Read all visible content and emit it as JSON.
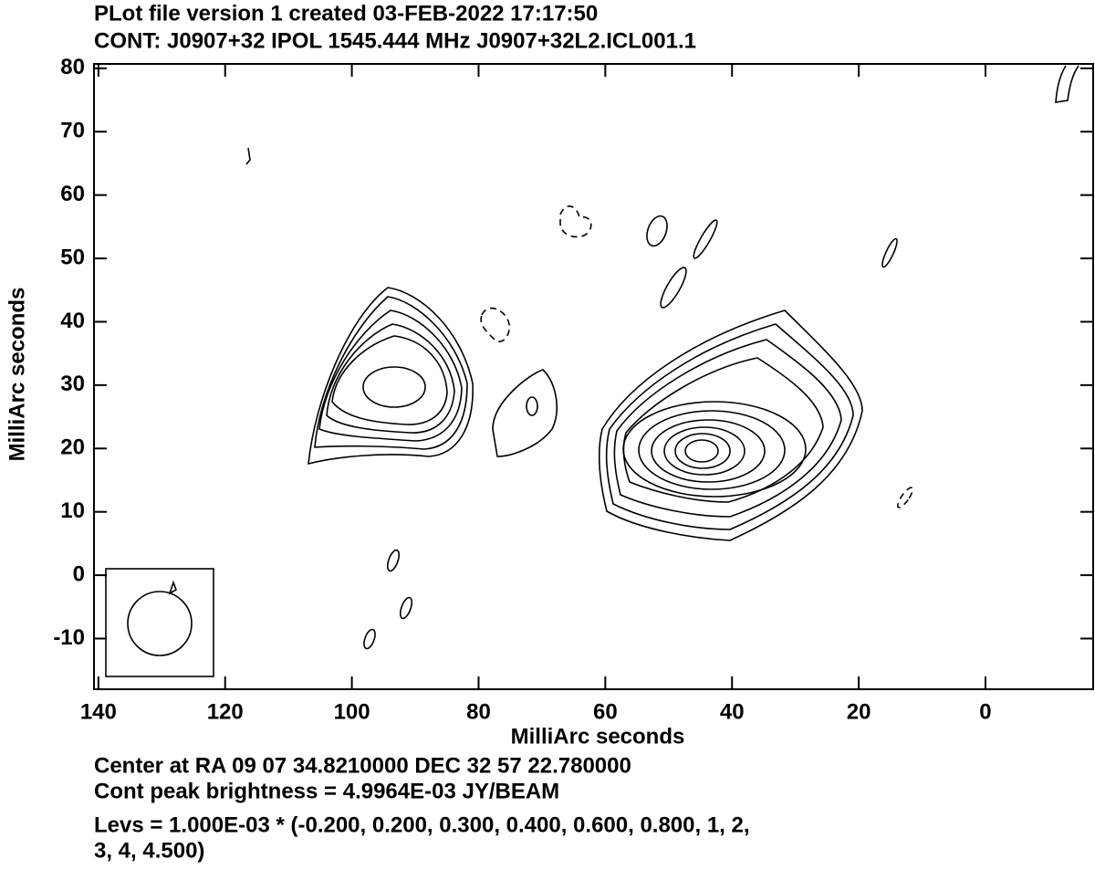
{
  "chart_data": {
    "type": "contour",
    "title": "PLot file version 1  created 03-FEB-2022 17:17:50",
    "subtitle": "CONT: J0907+32  IPOL  1545.444 MHz  J0907+32L2.ICL001.1",
    "xlabel": "MilliArc seconds",
    "ylabel": "MilliArc seconds",
    "xlim": [
      140.7,
      -17.0
    ],
    "ylim": [
      -18.0,
      80.7
    ],
    "xticks": [
      140,
      120,
      100,
      80,
      60,
      40,
      20,
      0
    ],
    "yticks": [
      -10,
      0,
      10,
      20,
      30,
      40,
      50,
      60,
      70,
      80
    ],
    "notes": [
      "Center at RA 09 07 34.8210000  DEC 32 57 22.780000",
      "Cont peak brightness = 4.9964E-03 JY/BEAM",
      "Levs = 1.000E-03 * (-0.200, 0.200, 0.300, 0.400, 0.600, 0.800, 1, 2,",
      "3, 4, 4.500)"
    ]
  }
}
